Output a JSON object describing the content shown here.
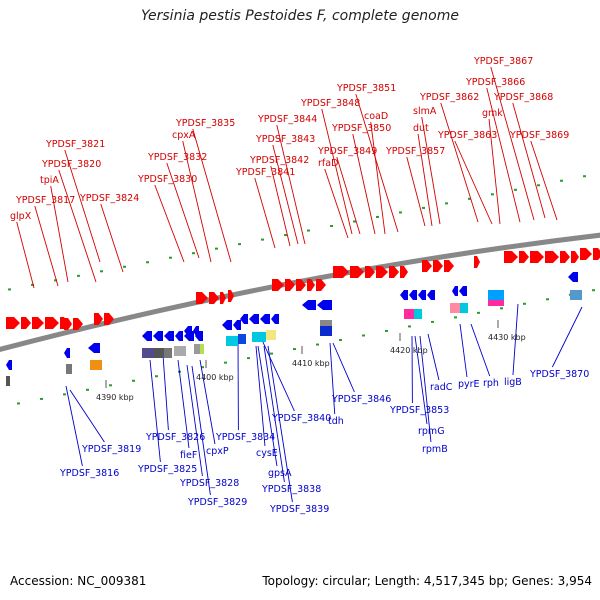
{
  "title": "Yersinia pestis Pestoides F, complete genome",
  "accession": "Accession: NC_009381",
  "summary": "Topology: circular; Length: 4,517,345 bp; Genes: 3,954",
  "colors": {
    "forward_label": "#d40000",
    "reverse_label": "#0000cc",
    "forward_gene": "#ff0000",
    "reverse_gene": "#0000ee",
    "backbone": "#888888"
  },
  "scale_ticks": [
    "4390 kbp",
    "4400 kbp",
    "4410 kbp",
    "4420 kbp",
    "4430 kbp"
  ],
  "forward_labels": [
    {
      "text": "glpX"
    },
    {
      "text": "YPDSF_3817"
    },
    {
      "text": "tpiA"
    },
    {
      "text": "YPDSF_3820"
    },
    {
      "text": "YPDSF_3821"
    },
    {
      "text": "YPDSF_3824"
    },
    {
      "text": "YPDSF_3830"
    },
    {
      "text": "YPDSF_3832"
    },
    {
      "text": "cpxA"
    },
    {
      "text": "YPDSF_3835"
    },
    {
      "text": "YPDSF_3841"
    },
    {
      "text": "YPDSF_3842"
    },
    {
      "text": "YPDSF_3843"
    },
    {
      "text": "YPDSF_3844"
    },
    {
      "text": "YPDSF_3848"
    },
    {
      "text": "rfaD"
    },
    {
      "text": "YPDSF_3849"
    },
    {
      "text": "YPDSF_3850"
    },
    {
      "text": "coaD"
    },
    {
      "text": "YPDSF_3851"
    },
    {
      "text": "YPDSF_3857"
    },
    {
      "text": "dut"
    },
    {
      "text": "slmA"
    },
    {
      "text": "YPDSF_3862"
    },
    {
      "text": "YPDSF_3863"
    },
    {
      "text": "gmk"
    },
    {
      "text": "YPDSF_3866"
    },
    {
      "text": "YPDSF_3867"
    },
    {
      "text": "YPDSF_3868"
    },
    {
      "text": "YPDSF_3869"
    }
  ],
  "reverse_labels": [
    {
      "text": "YPDSF_3816"
    },
    {
      "text": "YPDSF_3819"
    },
    {
      "text": "YPDSF_3825"
    },
    {
      "text": "YPDSF_3826"
    },
    {
      "text": "fieF"
    },
    {
      "text": "YPDSF_3828"
    },
    {
      "text": "YPDSF_3829"
    },
    {
      "text": "cpxP"
    },
    {
      "text": "YPDSF_3834"
    },
    {
      "text": "cysE"
    },
    {
      "text": "gpsA"
    },
    {
      "text": "YPDSF_3838"
    },
    {
      "text": "YPDSF_3839"
    },
    {
      "text": "YPDSF_3840"
    },
    {
      "text": "tdh"
    },
    {
      "text": "YPDSF_3846"
    },
    {
      "text": "YPDSF_3853"
    },
    {
      "text": "rpmG"
    },
    {
      "text": "rpmB"
    },
    {
      "text": "radC"
    },
    {
      "text": "pyrE"
    },
    {
      "text": "rph"
    },
    {
      "text": "ligB"
    },
    {
      "text": "YPDSF_3870"
    }
  ]
}
